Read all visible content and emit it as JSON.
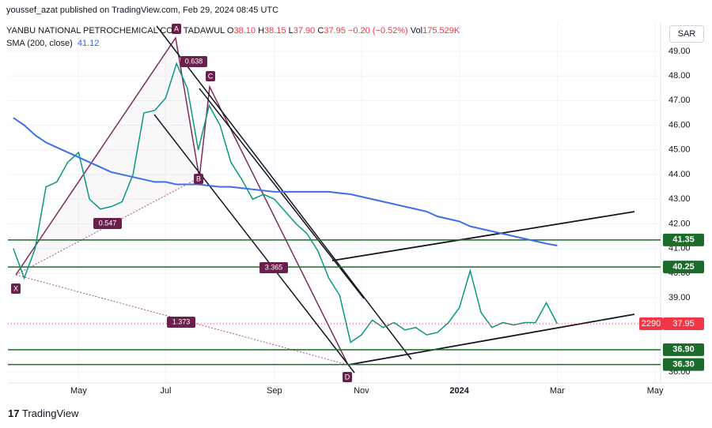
{
  "header": {
    "publisher": "youssef_azat published on TradingView.com, Feb 29, 2024 08:45 UTC",
    "exchange": "TADAWUL",
    "ohlc": [
      {
        "key": "O",
        "value": "38.10"
      },
      {
        "key": "H",
        "value": "38.15"
      },
      {
        "key": "L",
        "value": "37.90"
      },
      {
        "key": "C",
        "value": "37.95"
      }
    ],
    "change": "−0.20 (−0.52%)",
    "volume_key": "Vol",
    "volume": "175.529K",
    "currency": "SAR"
  },
  "footer": {
    "logo": "TradingView"
  },
  "chart_data": {
    "type": "line",
    "categories": [
      null,
      null,
      null,
      null,
      null,
      null,
      "May",
      null,
      null,
      null,
      null,
      null,
      null,
      null,
      "Jul",
      null,
      null,
      null,
      null,
      null,
      null,
      null,
      null,
      null,
      "Sep",
      null,
      null,
      null,
      null,
      null,
      null,
      null,
      "Nov",
      null,
      null,
      null,
      null,
      null,
      null,
      null,
      null,
      "2024",
      null,
      null,
      null,
      null,
      null,
      null,
      null,
      null,
      "Mar",
      null,
      null,
      null,
      null,
      null,
      null,
      null,
      null,
      "May"
    ],
    "series": [
      {
        "name": "YANBU NATIONAL PETROCHEMICAL CO.",
        "color": "#089981",
        "values": [
          41.0,
          39.8,
          41.0,
          43.5,
          43.7,
          44.5,
          44.9,
          43.0,
          42.6,
          42.7,
          42.9,
          44.0,
          46.5,
          46.6,
          47.1,
          48.5,
          47.5,
          45.0,
          46.8,
          46.0,
          44.5,
          43.8,
          43.0,
          43.2,
          43.0,
          42.5,
          42.0,
          41.6,
          40.9,
          39.8,
          39.1,
          37.2,
          37.5,
          38.1,
          37.8,
          38.0,
          37.7,
          37.8,
          37.5,
          37.6,
          38.0,
          38.6,
          40.1,
          38.4,
          37.8,
          38.0,
          37.9,
          38.0,
          38.0,
          38.8,
          37.95,
          null,
          null,
          null,
          null,
          null,
          null,
          null,
          null,
          null
        ]
      },
      {
        "name": "SMA (200, close)",
        "color": "#3d6fe6",
        "values": [
          46.3,
          46.0,
          45.6,
          45.3,
          45.1,
          44.9,
          44.7,
          44.5,
          44.3,
          44.1,
          44.0,
          43.9,
          43.8,
          43.7,
          43.7,
          43.6,
          43.6,
          43.6,
          43.55,
          43.5,
          43.5,
          43.45,
          43.4,
          43.35,
          43.3,
          43.3,
          43.3,
          43.3,
          43.3,
          43.3,
          43.25,
          43.2,
          43.1,
          43.0,
          42.9,
          42.8,
          42.7,
          42.6,
          42.5,
          42.3,
          42.2,
          42.1,
          41.9,
          41.8,
          41.7,
          41.6,
          41.5,
          41.4,
          41.3,
          41.2,
          41.12,
          null,
          null,
          null,
          null,
          null,
          null,
          null,
          null,
          null
        ]
      }
    ],
    "ylim": [
      35.55,
      50.18
    ],
    "yticks": [
      {
        "value": 36,
        "label": "36.00"
      },
      {
        "value": 39,
        "label": "39.00"
      },
      {
        "value": 40,
        "label": "40.00"
      },
      {
        "value": 41,
        "label": "41.00"
      },
      {
        "value": 42,
        "label": "42.00"
      },
      {
        "value": 43,
        "label": "43.00"
      },
      {
        "value": 44,
        "label": "44.00"
      },
      {
        "value": 45,
        "label": "45.00"
      },
      {
        "value": 46,
        "label": "46.00"
      },
      {
        "value": 47,
        "label": "47.00"
      },
      {
        "value": 48,
        "label": "48.00"
      },
      {
        "value": 49,
        "label": "49.00"
      }
    ],
    "grid": true,
    "levels": [
      41.35,
      40.25,
      {
        "value": 36.9,
        "label": "36.90"
      },
      {
        "value": 36.3,
        "label": "36.30"
      }
    ],
    "level_color": "#1b6b2a",
    "countdown": "2290",
    "pattern_points": [
      "X",
      "A",
      "B",
      "C",
      "D"
    ],
    "ratios": [
      "0.638",
      "0.547",
      "3.365",
      "1.373"
    ]
  }
}
